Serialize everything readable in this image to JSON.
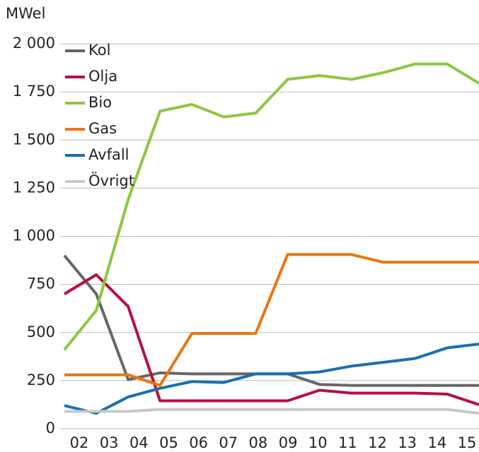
{
  "chart_data": {
    "type": "line",
    "y_label": "MWel",
    "categories": [
      "02",
      "03",
      "04",
      "05",
      "06",
      "07",
      "08",
      "09",
      "10",
      "11",
      "12",
      "13",
      "14",
      "15"
    ],
    "series": [
      {
        "name": "Kol",
        "color": "#666666",
        "values": [
          900,
          700,
          255,
          290,
          285,
          285,
          285,
          285,
          230,
          225,
          225,
          225,
          225,
          225
        ]
      },
      {
        "name": "Olja",
        "color": "#b5103e",
        "values": [
          700,
          800,
          635,
          145,
          145,
          145,
          145,
          145,
          200,
          185,
          185,
          185,
          180,
          125
        ]
      },
      {
        "name": "Bio",
        "color": "#8dc63f",
        "values": [
          410,
          615,
          1190,
          1650,
          1685,
          1620,
          1640,
          1815,
          1835,
          1815,
          1850,
          1895,
          1895,
          1795
        ]
      },
      {
        "name": "Gas",
        "color": "#e87511",
        "values": [
          280,
          280,
          280,
          225,
          495,
          495,
          495,
          905,
          905,
          905,
          865,
          865,
          865,
          865
        ]
      },
      {
        "name": "Avfall",
        "color": "#1a6fae",
        "values": [
          120,
          80,
          165,
          210,
          245,
          240,
          285,
          285,
          295,
          325,
          345,
          365,
          420,
          440
        ]
      },
      {
        "name": "Övrigt",
        "color": "#c8c8c8",
        "values": [
          90,
          90,
          90,
          100,
          100,
          100,
          100,
          100,
          100,
          100,
          100,
          100,
          100,
          80
        ]
      }
    ],
    "ylim": [
      0,
      2000
    ],
    "yticks": [
      0,
      250,
      500,
      750,
      {
        "value": 1000,
        "label": "1 000"
      },
      {
        "value": 1250,
        "label": "1 250"
      },
      {
        "value": 1500,
        "label": "1 500"
      },
      {
        "value": 1750,
        "label": "1 750"
      },
      {
        "value": 2000,
        "label": "2 000"
      }
    ],
    "grid": true,
    "legend": "top-left"
  }
}
